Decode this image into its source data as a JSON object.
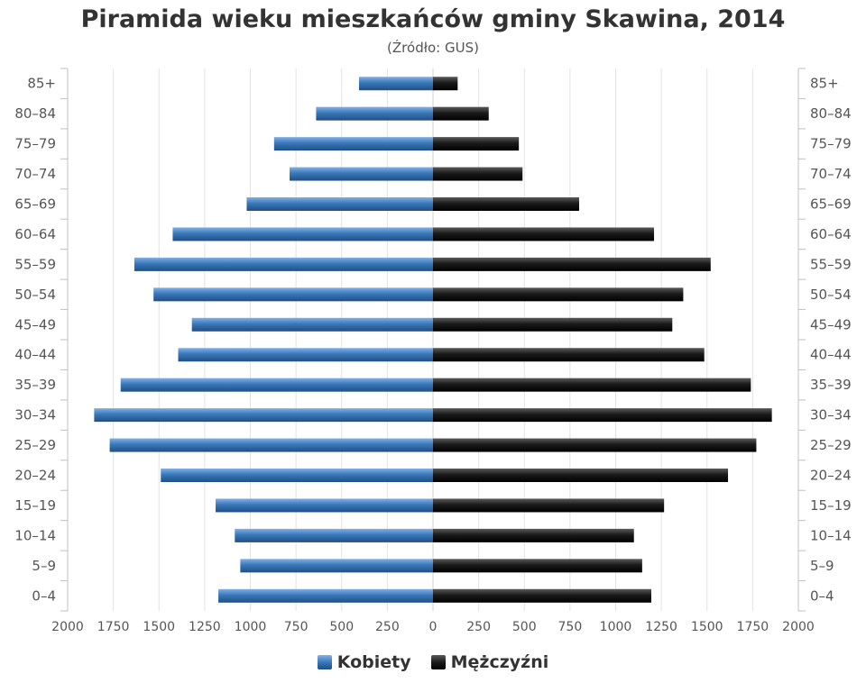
{
  "chart_data": {
    "type": "bar",
    "orientation": "horizontal",
    "layout": "population-pyramid",
    "title": "Piramida wieku mieszkańców gminy Skawina, 2014",
    "subtitle": "(Źródło: GUS)",
    "categories": [
      "85+",
      "80-84",
      "75-79",
      "70-74",
      "65-69",
      "60-64",
      "55-59",
      "50-54",
      "45-49",
      "40-44",
      "35-39",
      "30-34",
      "25-29",
      "20-24",
      "15-19",
      "10-14",
      "5-9",
      "0-4"
    ],
    "category_tick_labels": [
      "85+",
      "80–84",
      "75–79",
      "70–74",
      "65–69",
      "60–64",
      "55–59",
      "50–54",
      "45–49",
      "40–44",
      "35–39",
      "30–34",
      "25–29",
      "20–24",
      "15–19",
      "10–14",
      "5–9",
      "0–4"
    ],
    "series": [
      {
        "name": "Kobiety",
        "side": "left",
        "color": "#3a78b8",
        "values": [
          405,
          640,
          870,
          785,
          1020,
          1425,
          1635,
          1530,
          1320,
          1395,
          1710,
          1855,
          1770,
          1490,
          1190,
          1085,
          1055,
          1175
        ]
      },
      {
        "name": "Mężczyźni",
        "side": "right",
        "color": "#1a1a1a",
        "values": [
          135,
          305,
          470,
          490,
          800,
          1210,
          1520,
          1370,
          1310,
          1485,
          1740,
          1855,
          1770,
          1615,
          1265,
          1100,
          1145,
          1195
        ]
      }
    ],
    "x_tick_labels": [
      "2000",
      "1750",
      "1500",
      "1250",
      "1000",
      "750",
      "500",
      "250",
      "0",
      "250",
      "500",
      "750",
      "1000",
      "1250",
      "1500",
      "1750",
      "2000"
    ],
    "xlim": [
      -2000,
      2000
    ],
    "x_tick_step": 250,
    "grid": true,
    "legend_position": "bottom-center",
    "xlabel": "",
    "ylabel": ""
  }
}
